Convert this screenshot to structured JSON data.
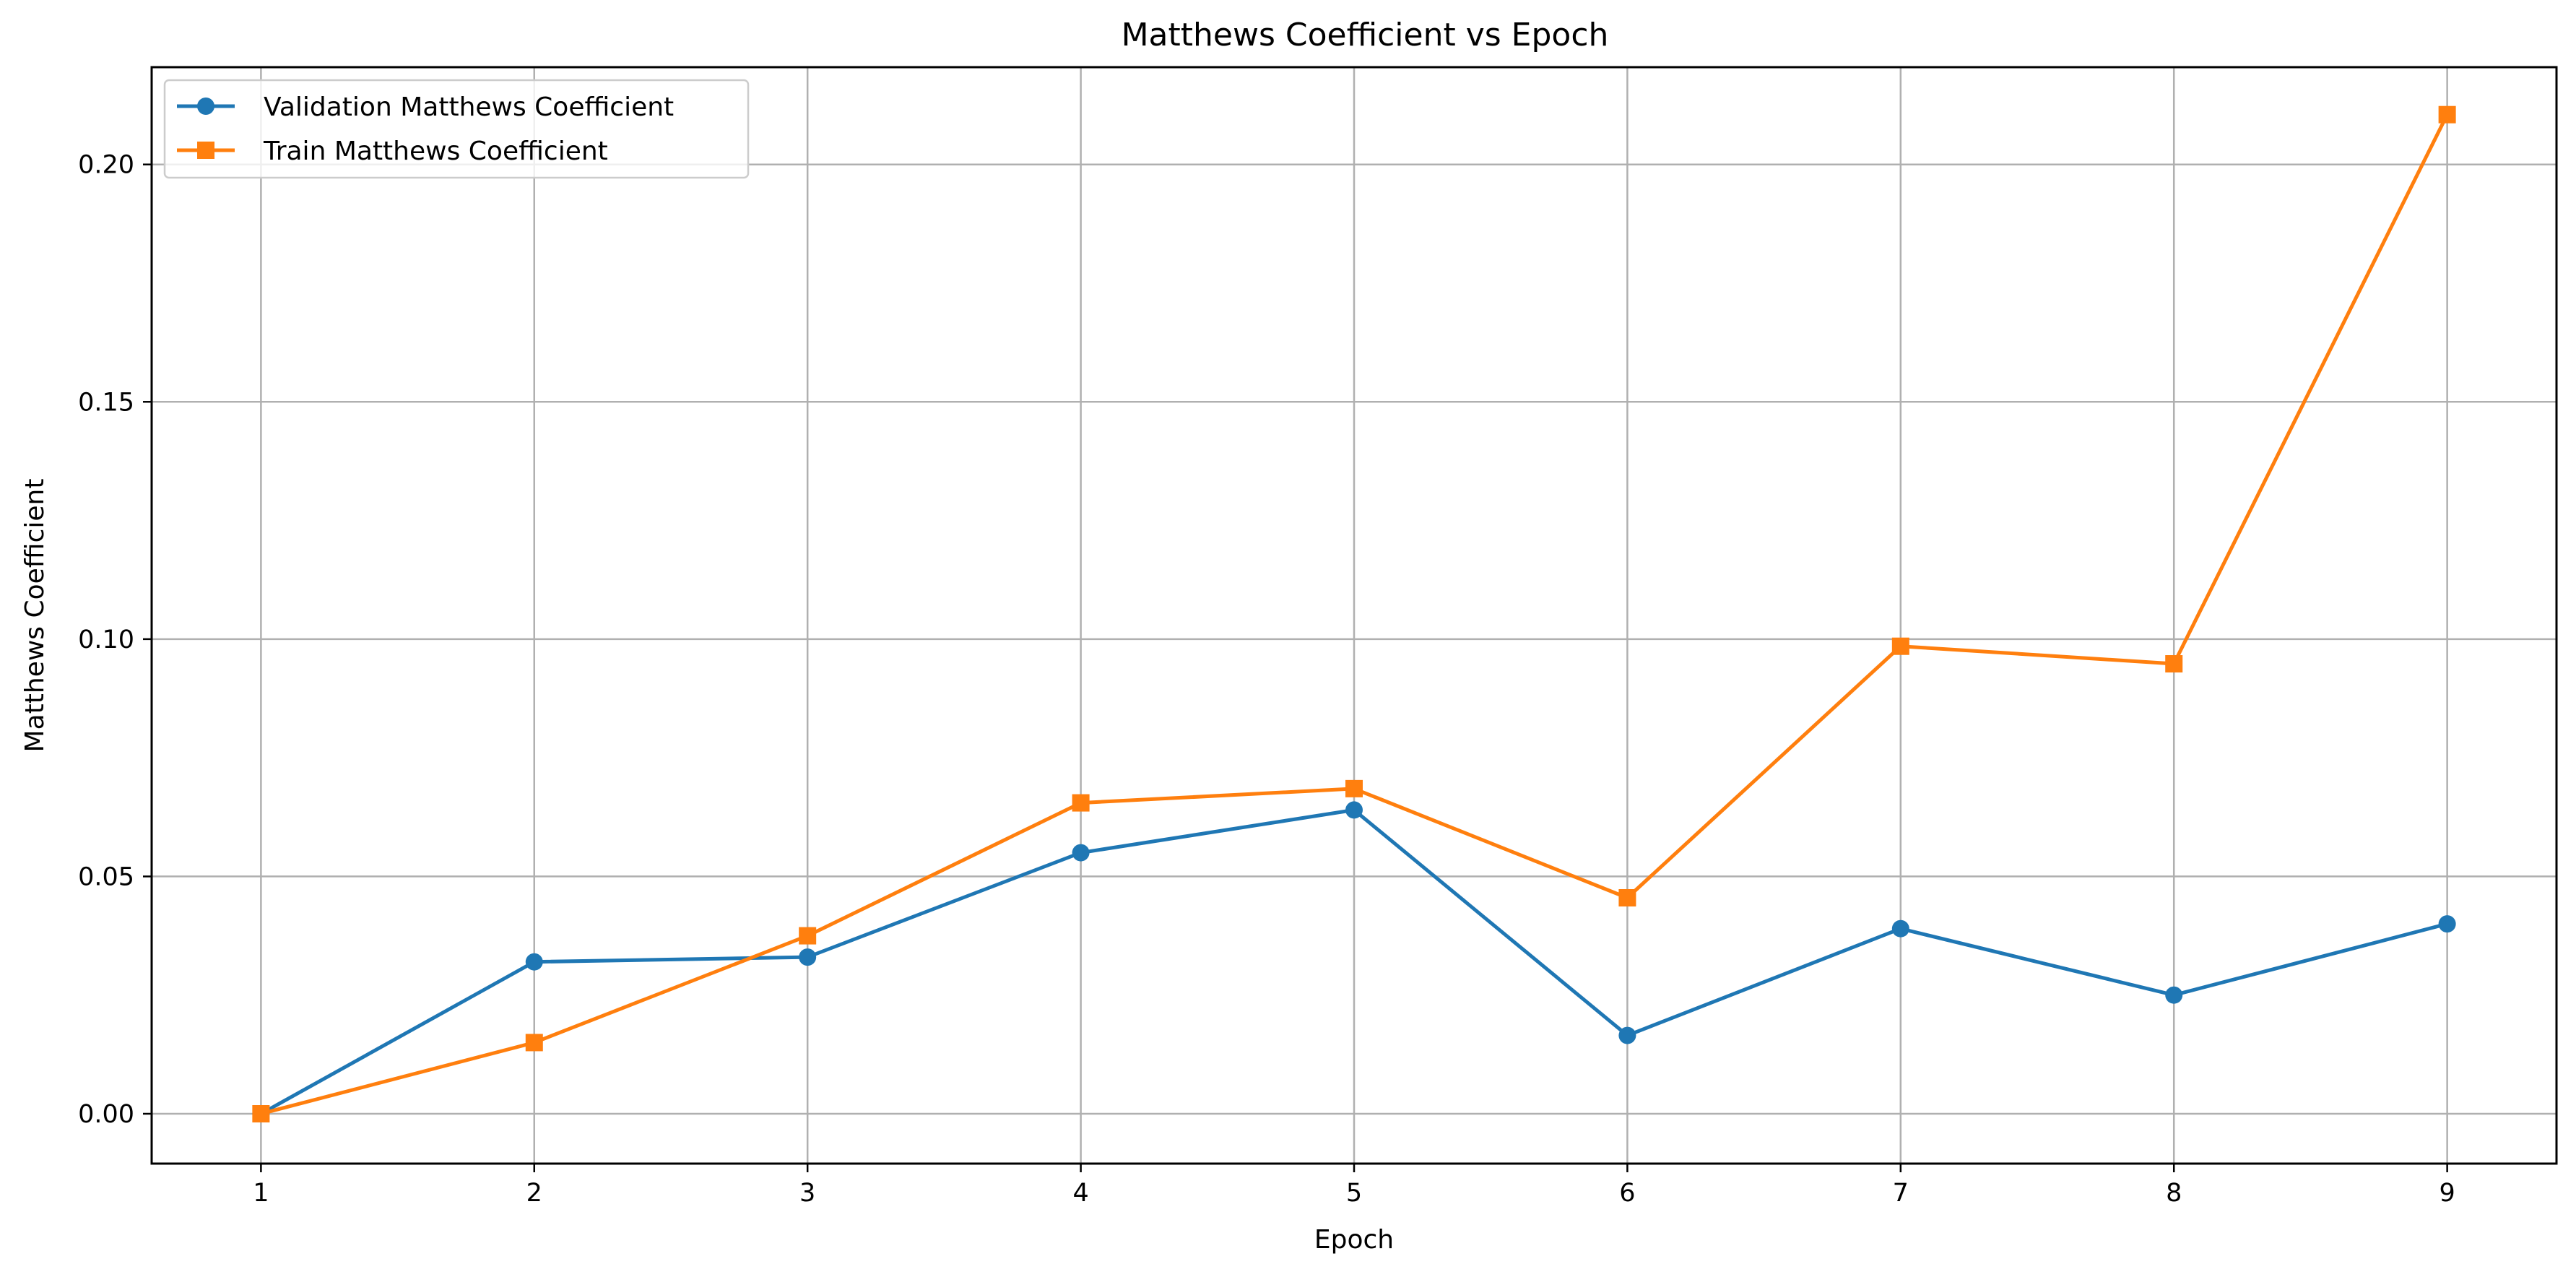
{
  "chart_data": {
    "type": "line",
    "title": "Matthews Coefficient vs Epoch",
    "xlabel": "Epoch",
    "ylabel": "Matthews Coefficient",
    "x": [
      1,
      2,
      3,
      4,
      5,
      6,
      7,
      8,
      9
    ],
    "xlim": [
      0.6,
      9.4
    ],
    "ylim": [
      -0.0105,
      0.2205
    ],
    "xticks": [
      "1",
      "2",
      "3",
      "4",
      "5",
      "6",
      "7",
      "8",
      "9"
    ],
    "yticks": [
      "0.00",
      "0.05",
      "0.10",
      "0.15",
      "0.20"
    ],
    "grid": true,
    "legend_position": "upper left",
    "series": [
      {
        "name": "Validation Matthews Coefficient",
        "color": "#1f77b4",
        "marker": "circle",
        "values": [
          0.0,
          0.032,
          0.033,
          0.055,
          0.064,
          0.0165,
          0.039,
          0.025,
          0.04
        ]
      },
      {
        "name": "Train Matthews Coefficient",
        "color": "#ff7f0e",
        "marker": "square",
        "values": [
          0.0,
          0.015,
          0.0375,
          0.0655,
          0.0685,
          0.0455,
          0.0985,
          0.0948,
          0.2105
        ]
      }
    ]
  }
}
